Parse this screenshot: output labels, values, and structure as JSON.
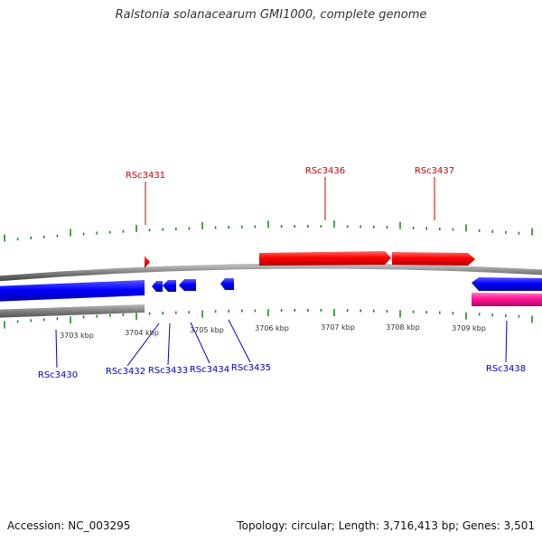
{
  "title": "Ralstonia solanacearum GMI1000, complete genome",
  "footer": {
    "accession": "Accession: NC_003295",
    "summary": "Topology: circular; Length: 3,716,413 bp; Genes: 3,501"
  },
  "colors": {
    "forward_gene": "#ff0000",
    "reverse_gene": "#0000ff",
    "rna_gene": "#ff1493",
    "backbone": "#808080",
    "tick": "#228b22",
    "label_forward": "#cc0000",
    "label_reverse": "#0000cc",
    "axis_text": "#333333"
  },
  "axis": {
    "ticks": [
      {
        "label": "3703 kbp"
      },
      {
        "label": "3704 kbp"
      },
      {
        "label": "3705 kbp"
      },
      {
        "label": "3706 kbp"
      },
      {
        "label": "3707 kbp"
      },
      {
        "label": "3708 kbp"
      },
      {
        "label": "3709 kbp"
      }
    ]
  },
  "genes": [
    {
      "name": "RSc3430",
      "strand": "reverse"
    },
    {
      "name": "RSc3431",
      "strand": "forward"
    },
    {
      "name": "RSc3432",
      "strand": "reverse"
    },
    {
      "name": "RSc3433",
      "strand": "reverse"
    },
    {
      "name": "RSc3434",
      "strand": "reverse"
    },
    {
      "name": "RSc3435",
      "strand": "reverse"
    },
    {
      "name": "RSc3436",
      "strand": "forward"
    },
    {
      "name": "RSc3437",
      "strand": "forward"
    },
    {
      "name": "RSc3438",
      "strand": "reverse"
    }
  ]
}
